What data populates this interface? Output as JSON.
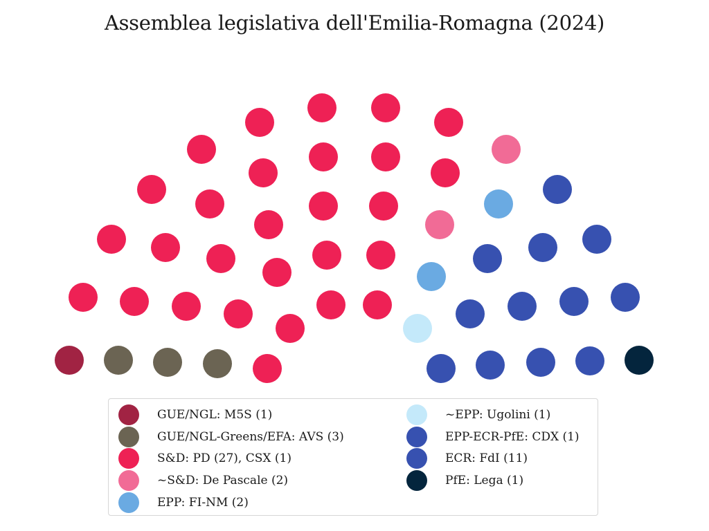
{
  "title": "Assemblea legislativa dell'Emilia-Romagna (2024)",
  "parties": [
    {
      "id": "m5s",
      "label": "GUE/NGL: M5S (1)",
      "color": "#a12343",
      "seats": 1
    },
    {
      "id": "avs",
      "label": "GUE/NGL-Greens/EFA: AVS (3)",
      "color": "#6b6453",
      "seats": 3
    },
    {
      "id": "pd",
      "label": "S&D: PD (27), CSX (1)",
      "color": "#ee2155",
      "seats": 28
    },
    {
      "id": "depasc",
      "label": "~S&D: De Pascale (2)",
      "color": "#f16b96",
      "seats": 2
    },
    {
      "id": "finm",
      "label": "EPP: FI-NM (2)",
      "color": "#6aaae2",
      "seats": 2
    },
    {
      "id": "ugolini",
      "label": "~EPP: Ugolini (1)",
      "color": "#c4e9fa",
      "seats": 1
    },
    {
      "id": "cdx",
      "label": "EPP-ECR-PfE: CDX (1)",
      "color": "#3751b0",
      "seats": 1
    },
    {
      "id": "fdi",
      "label": "ECR: FdI (11)",
      "color": "#3751b0",
      "seats": 11
    },
    {
      "id": "lega",
      "label": "PfE: Lega (1)",
      "color": "#04253d",
      "seats": 1
    }
  ]
}
